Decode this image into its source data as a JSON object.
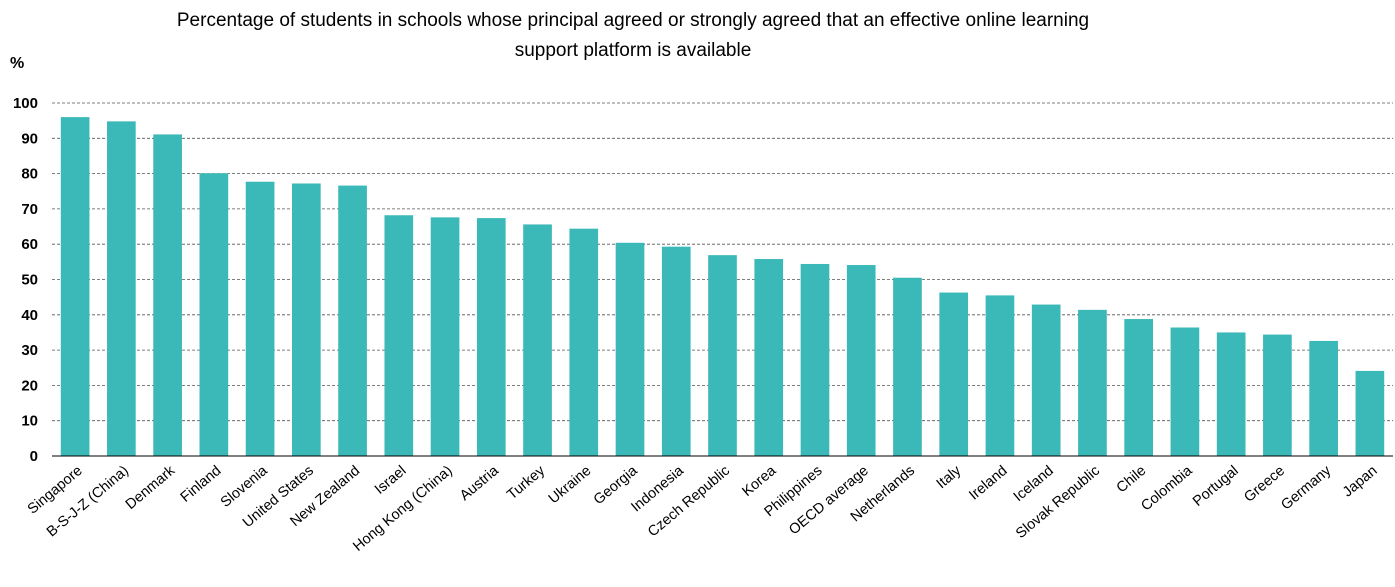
{
  "chart_data": {
    "type": "bar",
    "title_line1": "Percentage of students in schools whose principal agreed or strongly agreed that an effective online learning",
    "title_line2": "support platform is available",
    "ylabel": "%",
    "ylim": [
      0,
      100
    ],
    "yticks": [
      0,
      10,
      20,
      30,
      40,
      50,
      60,
      70,
      80,
      90,
      100
    ],
    "grid": true,
    "bar_color": "#3bb8b8",
    "categories": [
      "Singapore",
      "B-S-J-Z (China)",
      "Denmark",
      "Finland",
      "Slovenia",
      "United States",
      "New Zealand",
      "Israel",
      "Hong Kong (China)",
      "Austria",
      "Turkey",
      "Ukraine",
      "Georgia",
      "Indonesia",
      "Czech Republic",
      "Korea",
      "Philippines",
      "OECD average",
      "Netherlands",
      "Italy",
      "Ireland",
      "Iceland",
      "Slovak Republic",
      "Chile",
      "Colombia",
      "Portugal",
      "Greece",
      "Germany",
      "Japan"
    ],
    "values": [
      96,
      94.8,
      91.1,
      80.1,
      77.7,
      77.2,
      76.6,
      68.2,
      67.6,
      67.4,
      65.6,
      64.4,
      60.4,
      59.3,
      56.9,
      55.8,
      54.4,
      54.1,
      50.5,
      46.3,
      45.5,
      42.9,
      41.4,
      38.8,
      36.4,
      35,
      34.4,
      32.6,
      24.1
    ]
  }
}
